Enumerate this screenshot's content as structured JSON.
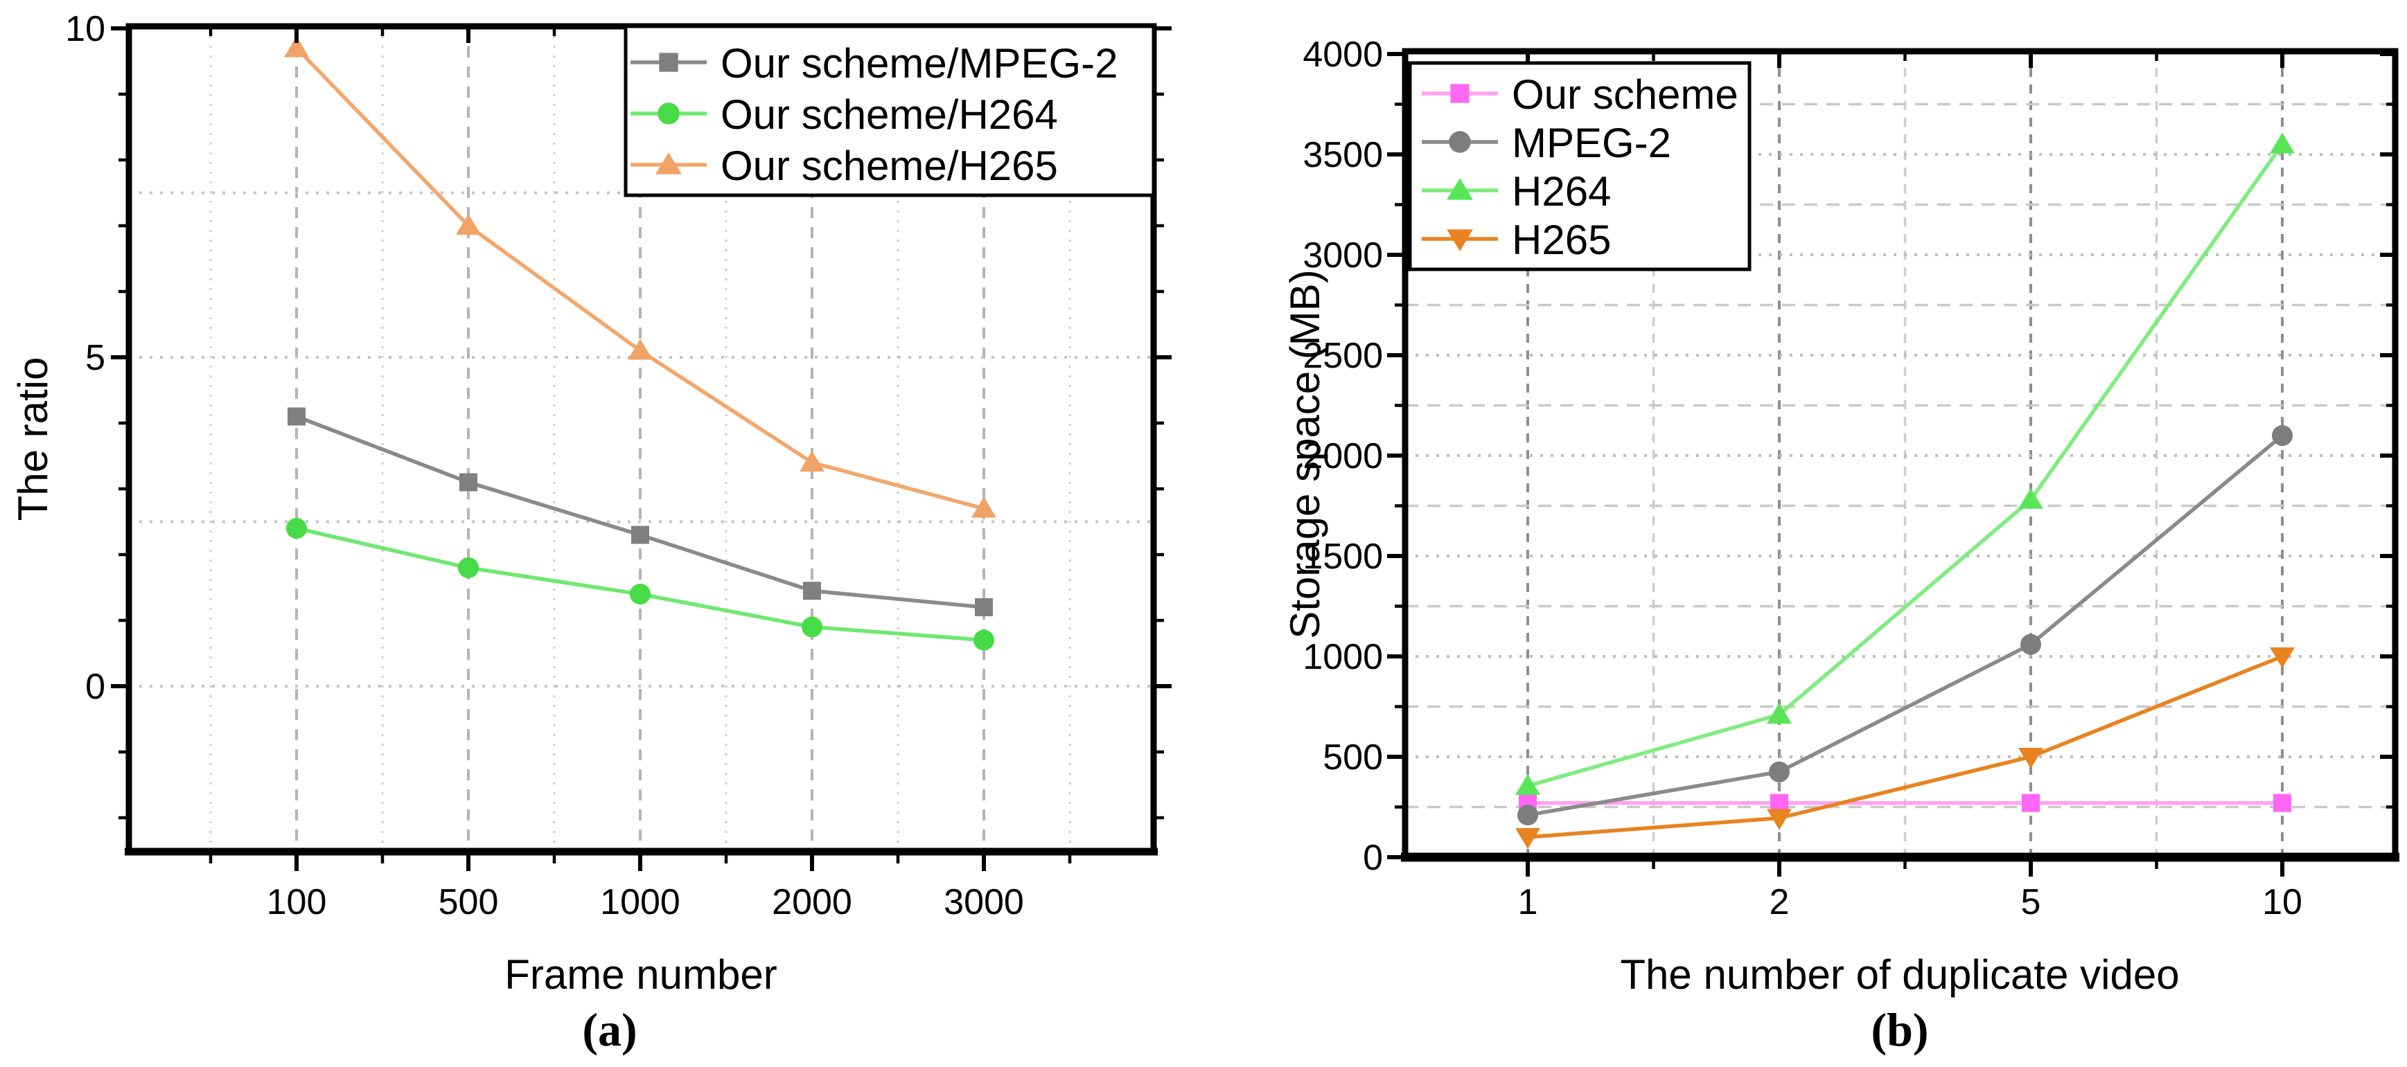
{
  "figure": {
    "background": "#ffffff",
    "caption_a": "(a)",
    "caption_b": "(b)"
  },
  "chart_data": [
    {
      "id": "a",
      "type": "line",
      "caption": "(a)",
      "xlabel": "Frame number",
      "ylabel": "The ratio",
      "categories": [
        "100",
        "500",
        "1000",
        "2000",
        "3000"
      ],
      "ylim": [
        -2.5,
        10
      ],
      "ytick_values": [
        0,
        5,
        10
      ],
      "ytick_labels": [
        "0",
        "5",
        "10"
      ],
      "y_minor_values": [
        -2,
        -1,
        1,
        2,
        3,
        4,
        6,
        7,
        8,
        9
      ],
      "h_grid_values": [
        0,
        2.5,
        5,
        7.5
      ],
      "grid": true,
      "legend_position": "top-right",
      "series": [
        {
          "name": "Our scheme/MPEG-2",
          "marker": "square",
          "marker_color": "#808080",
          "line_color": "#8a8a8a",
          "values": [
            4.1,
            3.1,
            2.3,
            1.45,
            1.2
          ]
        },
        {
          "name": "Our scheme/H264",
          "marker": "circle",
          "marker_color": "#47DB47",
          "line_color": "#6FE86F",
          "values": [
            2.4,
            1.8,
            1.4,
            0.9,
            0.7
          ]
        },
        {
          "name": "Our scheme/H265",
          "marker": "triangle-up",
          "marker_color": "#F1A266",
          "line_color": "#F3A76B",
          "values": [
            9.7,
            7.0,
            5.1,
            3.4,
            2.7
          ]
        }
      ]
    },
    {
      "id": "b",
      "type": "line",
      "caption": "(b)",
      "xlabel": "The number of duplicate video",
      "ylabel": "Storage space (MB)",
      "categories": [
        "1",
        "2",
        "5",
        "10"
      ],
      "ylim": [
        0,
        4000
      ],
      "ytick_values": [
        0,
        500,
        1000,
        1500,
        2000,
        2500,
        3000,
        3500,
        4000
      ],
      "ytick_labels": [
        "0",
        "500",
        "1000",
        "1500",
        "2000",
        "2500",
        "3000",
        "3500",
        "4000"
      ],
      "y_minor_values": [
        250,
        750,
        1250,
        1750,
        2250,
        2750,
        3250,
        3750
      ],
      "h_grid_major": [
        500,
        1000,
        1500,
        2000,
        2500,
        3000,
        3500
      ],
      "h_grid_minor": [
        250,
        750,
        1250,
        1750,
        2250,
        2750,
        3250,
        3750
      ],
      "grid": true,
      "legend_position": "top-left",
      "series": [
        {
          "name": "Our scheme",
          "marker": "square",
          "marker_color": "#FF66F4",
          "line_color": "#FFA3F0",
          "values": [
            270,
            270,
            270,
            270
          ]
        },
        {
          "name": "MPEG-2",
          "marker": "circle",
          "marker_color": "#7D7D7D",
          "line_color": "#8a8a8a",
          "values": [
            210,
            425,
            1060,
            2100
          ]
        },
        {
          "name": "H264",
          "marker": "triangle-up",
          "marker_color": "#58E658",
          "line_color": "#7FEC7F",
          "values": [
            355,
            710,
            1780,
            3550
          ]
        },
        {
          "name": "H265",
          "marker": "triangle-down",
          "marker_color": "#E8831F",
          "line_color": "#E8831F",
          "values": [
            100,
            195,
            500,
            1000
          ]
        }
      ]
    }
  ]
}
